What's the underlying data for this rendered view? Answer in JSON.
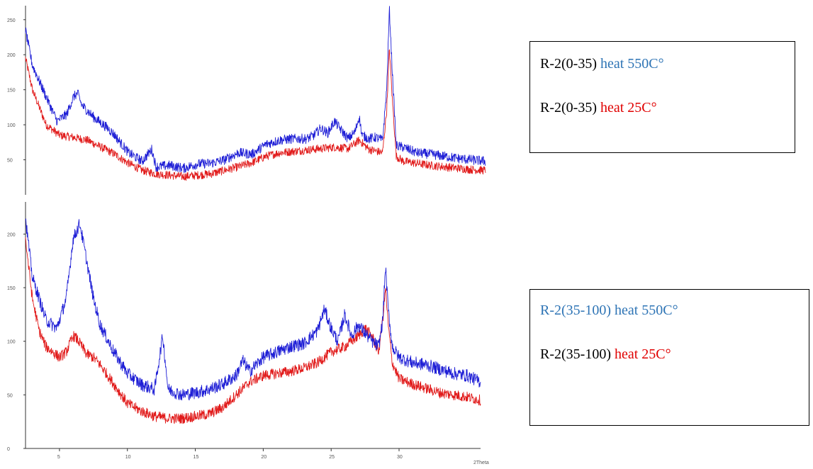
{
  "colors": {
    "blue": "#1f1fd6",
    "red": "#e11b1b",
    "legend_blue": "#2e74b5",
    "legend_red": "#e00000"
  },
  "chart_data": [
    {
      "type": "line",
      "panel": "top",
      "xlabel": "2Theta",
      "x_ticks": [
        5,
        10,
        15,
        20,
        25,
        30
      ],
      "y_ticks": [
        50,
        100,
        150,
        200,
        250
      ],
      "xlim": [
        2.5,
        36
      ],
      "ylim": [
        0,
        270
      ],
      "legend": {
        "lines": [
          {
            "prefix": "R-2(0-35) ",
            "suffix": "heat 550C°",
            "prefix_color": "#000000",
            "suffix_color": "#2e74b5"
          },
          {
            "prefix": "R-2(0-35) ",
            "suffix": "heat 25C°",
            "prefix_color": "#000000",
            "suffix_color": "#e00000"
          }
        ]
      },
      "series": [
        {
          "color": "#1f1fd6",
          "noise": 7,
          "x": [
            2.5,
            3,
            4,
            4.8,
            5.5,
            6,
            6.3,
            6.6,
            7.5,
            8.5,
            9,
            10,
            11,
            11.7,
            12,
            13,
            14,
            15,
            16,
            17,
            18,
            19,
            20,
            21,
            22,
            23,
            23.5,
            24,
            24.5,
            25,
            25.5,
            26,
            26.5,
            26.8,
            27,
            27.5,
            28,
            28.5,
            28.8,
            29,
            29.2,
            29.5,
            30,
            31,
            32,
            33,
            34,
            35,
            36
          ],
          "y": [
            235,
            185,
            140,
            105,
            115,
            140,
            145,
            128,
            110,
            95,
            85,
            60,
            48,
            65,
            40,
            42,
            38,
            44,
            45,
            50,
            60,
            58,
            72,
            78,
            80,
            80,
            85,
            95,
            88,
            105,
            92,
            80,
            90,
            112,
            85,
            80,
            82,
            78,
            150,
            265,
            180,
            70,
            68,
            60,
            58,
            55,
            52,
            50,
            48
          ]
        },
        {
          "color": "#e11b1b",
          "noise": 6,
          "x": [
            2.5,
            3,
            4,
            5,
            6,
            7,
            8,
            9,
            10,
            11,
            12,
            13,
            14,
            15,
            16,
            17,
            18,
            19,
            20,
            21,
            22,
            23,
            24,
            25,
            26,
            26.8,
            27.5,
            28.5,
            28.8,
            29,
            29.2,
            29.5,
            30,
            31,
            32,
            33,
            34,
            35,
            36
          ],
          "y": [
            195,
            150,
            100,
            85,
            82,
            78,
            68,
            58,
            45,
            35,
            30,
            28,
            26,
            28,
            30,
            35,
            40,
            46,
            55,
            60,
            62,
            64,
            66,
            68,
            66,
            78,
            65,
            60,
            120,
            210,
            140,
            55,
            48,
            45,
            42,
            40,
            38,
            36,
            35
          ]
        }
      ]
    },
    {
      "type": "line",
      "panel": "bottom",
      "xlabel": "2Theta",
      "x_ticks": [
        5,
        10,
        15,
        20,
        25,
        30
      ],
      "y_ticks": [
        0,
        50,
        100,
        150,
        200
      ],
      "xlim": [
        2.5,
        36
      ],
      "ylim": [
        0,
        230
      ],
      "legend": {
        "lines": [
          {
            "prefix": "",
            "suffix": "R-2(35-100) heat 550C°",
            "prefix_color": "#000000",
            "suffix_color": "#2e74b5"
          },
          {
            "prefix": "R-2(35-100) ",
            "suffix": "heat 25C°",
            "prefix_color": "#000000",
            "suffix_color": "#e00000"
          }
        ]
      },
      "series": [
        {
          "color": "#1f1fd6",
          "noise": 6,
          "x": [
            2.5,
            3,
            3.5,
            4,
            4.8,
            5.5,
            6,
            6.5,
            7,
            7.5,
            8,
            9,
            10,
            11,
            12,
            12.6,
            13,
            14,
            15,
            16,
            17,
            18,
            18.5,
            19,
            20,
            21,
            22,
            23,
            24,
            24.5,
            25,
            25.5,
            26,
            26.5,
            27,
            28,
            28.5,
            28.8,
            29,
            29.2,
            29.5,
            30,
            31,
            32,
            33,
            34,
            35,
            36
          ],
          "y": [
            215,
            160,
            140,
            120,
            112,
            140,
            195,
            210,
            175,
            140,
            115,
            90,
            70,
            60,
            55,
            105,
            55,
            50,
            52,
            55,
            60,
            68,
            82,
            72,
            85,
            90,
            95,
            98,
            110,
            130,
            112,
            100,
            125,
            105,
            115,
            100,
            95,
            120,
            170,
            130,
            95,
            85,
            80,
            78,
            74,
            70,
            68,
            62
          ]
        },
        {
          "color": "#e11b1b",
          "noise": 5,
          "x": [
            2.5,
            3,
            3.5,
            4,
            5,
            5.5,
            6,
            6.3,
            7,
            7.5,
            8,
            9,
            10,
            11,
            12,
            13,
            14,
            15,
            16,
            17,
            18,
            19,
            20,
            21,
            22,
            23,
            24,
            25,
            26,
            26.5,
            27,
            27.5,
            28,
            28.5,
            28.8,
            29,
            29.2,
            29.5,
            30,
            31,
            32,
            33,
            34,
            35,
            36
          ],
          "y": [
            195,
            140,
            110,
            95,
            85,
            90,
            105,
            102,
            88,
            85,
            78,
            60,
            42,
            35,
            30,
            28,
            28,
            30,
            32,
            38,
            50,
            62,
            68,
            70,
            72,
            75,
            80,
            90,
            95,
            100,
            105,
            112,
            105,
            90,
            120,
            150,
            115,
            80,
            65,
            60,
            56,
            52,
            50,
            48,
            45
          ]
        }
      ]
    }
  ]
}
